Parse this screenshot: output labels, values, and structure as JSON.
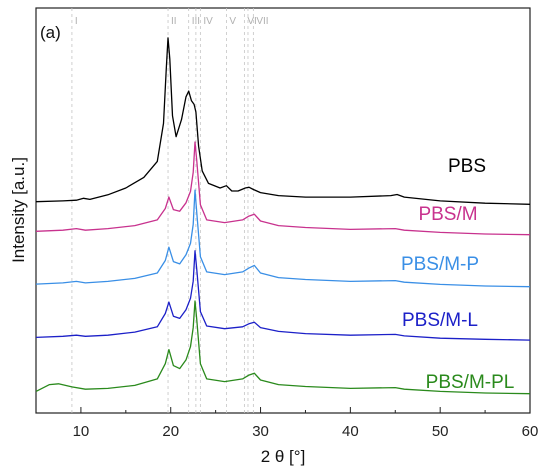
{
  "chart_data": {
    "type": "line",
    "panel_label": "(a)",
    "xlabel": "2 θ [°]",
    "ylabel": "Intensity [a.u.]",
    "xlim": [
      5,
      60
    ],
    "xticks": [
      10,
      20,
      30,
      40,
      50,
      60
    ],
    "ref_lines": [
      {
        "label": "I",
        "x": 9.0
      },
      {
        "label": "II",
        "x": 19.7
      },
      {
        "label": "III",
        "x": 22.0
      },
      {
        "label": "",
        "x": 22.8
      },
      {
        "label": "IV",
        "x": 23.3
      },
      {
        "label": "V",
        "x": 26.2
      },
      {
        "label": "VI",
        "x": 28.2
      },
      {
        "label": "",
        "x": 28.6
      },
      {
        "label": "VII",
        "x": 29.2
      }
    ],
    "series": [
      {
        "name": "PBS",
        "color": "#000000",
        "offset": 4,
        "x": [
          5,
          8,
          9.5,
          10.3,
          11,
          13,
          15,
          17,
          18.5,
          19.2,
          19.5,
          19.7,
          19.9,
          20.2,
          20.6,
          21.2,
          21.7,
          22.0,
          22.3,
          22.6,
          22.8,
          23.1,
          23.5,
          24.2,
          25.5,
          26.2,
          26.8,
          27.5,
          28.3,
          28.7,
          29.2,
          30,
          32,
          35,
          40,
          44.5,
          45.2,
          46,
          50,
          55,
          60
        ],
        "y": [
          0.14,
          0.16,
          0.18,
          0.23,
          0.2,
          0.32,
          0.5,
          0.78,
          1.2,
          2.2,
          3.6,
          4.45,
          3.9,
          2.4,
          1.85,
          2.3,
          2.9,
          3.05,
          2.8,
          2.7,
          2.5,
          1.6,
          0.95,
          0.62,
          0.5,
          0.56,
          0.42,
          0.42,
          0.5,
          0.52,
          0.46,
          0.38,
          0.3,
          0.26,
          0.26,
          0.3,
          0.33,
          0.26,
          0.16,
          0.1,
          0.07
        ]
      },
      {
        "name": "PBS/M",
        "color": "#c8328e",
        "offset": 3,
        "x": [
          5,
          8,
          9.5,
          10.5,
          13,
          16,
          18.5,
          19.4,
          19.8,
          20.3,
          21,
          21.7,
          22.2,
          22.5,
          22.7,
          22.9,
          23.3,
          24,
          26,
          28,
          28.7,
          29.3,
          30,
          32,
          35,
          40,
          45,
          46,
          50,
          55,
          60
        ],
        "y": [
          0.15,
          0.18,
          0.22,
          0.18,
          0.22,
          0.3,
          0.45,
          0.75,
          1.05,
          0.72,
          0.68,
          0.9,
          1.2,
          1.7,
          2.5,
          2.0,
          0.85,
          0.45,
          0.38,
          0.45,
          0.55,
          0.6,
          0.42,
          0.3,
          0.25,
          0.2,
          0.22,
          0.18,
          0.12,
          0.08,
          0.06
        ]
      },
      {
        "name": "PBS/M-P",
        "color": "#3a8fe6",
        "offset": 2,
        "x": [
          5,
          8,
          9.5,
          10.5,
          13,
          16,
          18.5,
          19.4,
          19.8,
          20.3,
          21,
          21.7,
          22.2,
          22.5,
          22.7,
          22.9,
          23.3,
          24,
          26,
          28,
          28.7,
          29.3,
          30,
          32,
          35,
          40,
          45,
          46,
          50,
          55,
          60
        ],
        "y": [
          0.13,
          0.16,
          0.2,
          0.16,
          0.2,
          0.28,
          0.42,
          0.75,
          1.1,
          0.72,
          0.66,
          0.9,
          1.2,
          1.7,
          2.6,
          2.0,
          0.85,
          0.45,
          0.38,
          0.45,
          0.55,
          0.62,
          0.42,
          0.3,
          0.25,
          0.2,
          0.22,
          0.18,
          0.12,
          0.08,
          0.06
        ]
      },
      {
        "name": "PBS/M-L",
        "color": "#1c20c8",
        "offset": 1,
        "x": [
          5,
          8,
          9.5,
          10.5,
          13,
          16,
          18.5,
          19.4,
          19.8,
          20.3,
          21,
          21.7,
          22.2,
          22.5,
          22.7,
          22.9,
          23.3,
          24,
          26,
          28,
          28.7,
          29.3,
          30,
          32,
          35,
          40,
          45,
          46,
          50,
          55,
          60
        ],
        "y": [
          0.12,
          0.15,
          0.18,
          0.15,
          0.18,
          0.26,
          0.4,
          0.75,
          1.05,
          0.68,
          0.62,
          0.85,
          1.15,
          1.6,
          2.4,
          1.9,
          0.8,
          0.42,
          0.35,
          0.4,
          0.48,
          0.52,
          0.38,
          0.28,
          0.22,
          0.18,
          0.2,
          0.16,
          0.1,
          0.07,
          0.05
        ]
      },
      {
        "name": "PBS/M-PL",
        "color": "#2a8a1c",
        "offset": 0,
        "x": [
          5,
          6.5,
          7.5,
          9,
          10.5,
          13,
          16,
          18.5,
          19.4,
          19.8,
          20.3,
          21,
          21.7,
          22.2,
          22.5,
          22.7,
          22.9,
          23.3,
          24,
          26,
          28,
          28.7,
          29.3,
          30,
          32,
          35,
          40,
          45,
          46,
          50,
          55,
          60
        ],
        "y": [
          0.12,
          0.3,
          0.32,
          0.24,
          0.18,
          0.2,
          0.28,
          0.45,
          0.85,
          1.22,
          0.8,
          0.72,
          0.95,
          1.3,
          1.8,
          2.5,
          2.0,
          0.85,
          0.45,
          0.38,
          0.45,
          0.55,
          0.6,
          0.42,
          0.3,
          0.25,
          0.2,
          0.22,
          0.18,
          0.12,
          0.08,
          0.06
        ]
      }
    ]
  }
}
